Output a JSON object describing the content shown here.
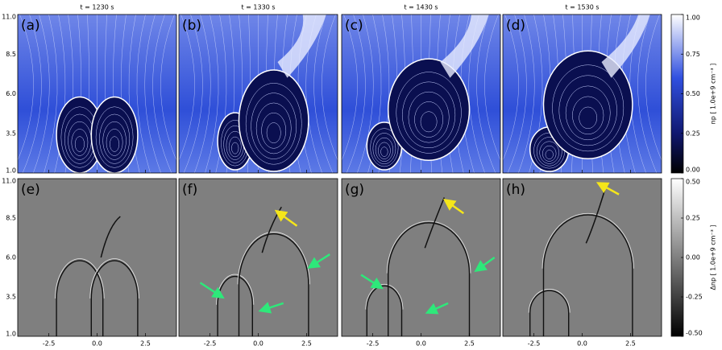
{
  "columns": [
    {
      "title": "t = 1230 s",
      "top_label": "(a)",
      "bottom_label": "(e)"
    },
    {
      "title": "t = 1330 s",
      "top_label": "(b)",
      "bottom_label": "(f)"
    },
    {
      "title": "t = 1430 s",
      "top_label": "(c)",
      "bottom_label": "(g)"
    },
    {
      "title": "t = 1530 s",
      "top_label": "(d)",
      "bottom_label": "(h)"
    }
  ],
  "y_ticks": [
    "11.0",
    "8.5",
    "6.0",
    "3.5",
    "1.0"
  ],
  "x_ticks": [
    "-2.5",
    "0.0",
    "2.5"
  ],
  "colorbars": [
    {
      "label": "np [ 1.0e+9 cm⁻³ ]",
      "ticks": [
        "1.00",
        "0.75",
        "0.50",
        "0.25",
        "0.00"
      ]
    },
    {
      "label": "Δnp [ 1.0e+9 cm⁻³ ]",
      "ticks": [
        "0.50",
        "0.25",
        "0.00",
        "-0.25",
        "-0.50"
      ]
    }
  ]
}
